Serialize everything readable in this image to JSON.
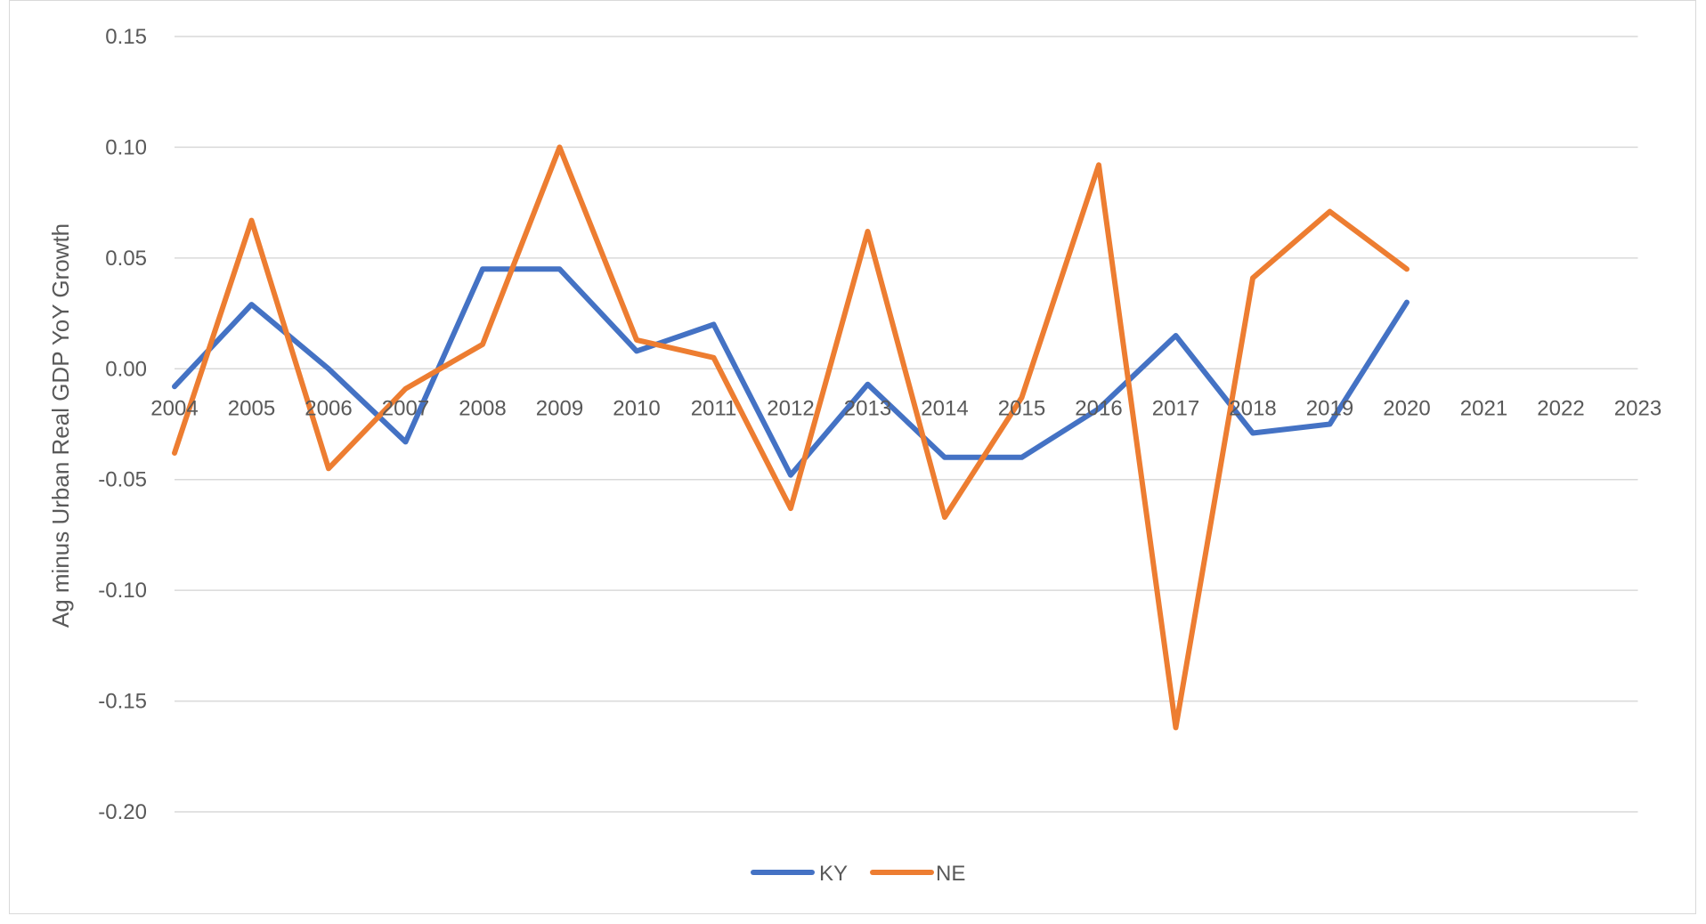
{
  "chart_data": {
    "type": "line",
    "title": "",
    "xlabel": "",
    "ylabel": "Ag minus Urban Real GDP YoY Growth",
    "ylim": [
      -0.2,
      0.15
    ],
    "yticks": [
      0.15,
      0.1,
      0.05,
      0.0,
      -0.05,
      -0.1,
      -0.15,
      -0.2
    ],
    "ytick_labels": [
      "0.15",
      "0.10",
      "0.05",
      "0.00",
      "-0.05",
      "-0.10",
      "-0.15",
      "-0.20"
    ],
    "categories": [
      "2004",
      "2005",
      "2006",
      "2007",
      "2008",
      "2009",
      "2010",
      "2011",
      "2012",
      "2013",
      "2014",
      "2015",
      "2016",
      "2017",
      "2018",
      "2019",
      "2020",
      "2021",
      "2022",
      "2023"
    ],
    "grid": true,
    "legend_position": "bottom",
    "series": [
      {
        "name": "KY",
        "color": "#4472C4",
        "values": [
          -0.008,
          0.029,
          0.0,
          -0.033,
          0.045,
          0.045,
          0.008,
          0.02,
          -0.048,
          -0.007,
          -0.04,
          -0.04,
          -0.018,
          0.015,
          -0.029,
          -0.025,
          0.03,
          null,
          null,
          null
        ]
      },
      {
        "name": "NE",
        "color": "#ED7D31",
        "values": [
          -0.038,
          0.067,
          -0.045,
          -0.009,
          0.011,
          0.1,
          0.013,
          0.005,
          -0.063,
          0.062,
          -0.067,
          -0.013,
          0.092,
          -0.162,
          0.041,
          0.071,
          0.045,
          null,
          null,
          null
        ]
      }
    ]
  }
}
